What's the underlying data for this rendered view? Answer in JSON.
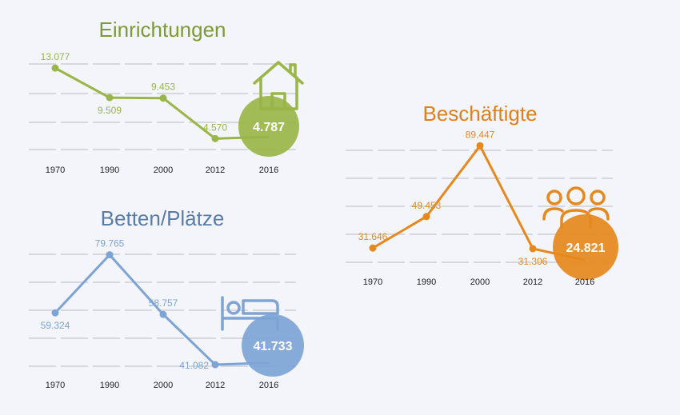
{
  "chart_data": [
    {
      "type": "line",
      "title": "Einrichtungen",
      "categories": [
        "1970",
        "1990",
        "2000",
        "2012",
        "2016"
      ],
      "values": [
        13077,
        9509,
        9453,
        4570,
        4787
      ],
      "labels": [
        "13.077",
        "9.509",
        "9.453",
        "4.570",
        "4.787"
      ],
      "color": "#9ab548",
      "title_color": "#7d9a35",
      "icon": "house-icon",
      "grid": true,
      "ylim": [
        2000,
        15500
      ]
    },
    {
      "type": "line",
      "title": "Betten/Plätze",
      "categories": [
        "1970",
        "1990",
        "2000",
        "2012",
        "2016"
      ],
      "values": [
        59324,
        79765,
        58757,
        41082,
        41733
      ],
      "labels": [
        "59.324",
        "79.765",
        "58.757",
        "41.082",
        "41.733"
      ],
      "color": "#7ea4d6",
      "title_color": "#5a7ca8",
      "icon": "bed-icon",
      "grid": true,
      "ylim": [
        38000,
        85000
      ]
    },
    {
      "type": "line",
      "title": "Beschäftigte",
      "categories": [
        "1970",
        "1990",
        "2000",
        "2012",
        "2016"
      ],
      "values": [
        31646,
        49453,
        89447,
        31306,
        24821
      ],
      "labels": [
        "31.646",
        "49.453",
        "89.447",
        "31.306",
        "24.821"
      ],
      "color": "#e6881c",
      "title_color": "#e0801a",
      "icon": "people-icon",
      "grid": true,
      "ylim": [
        20000,
        95000
      ]
    }
  ]
}
